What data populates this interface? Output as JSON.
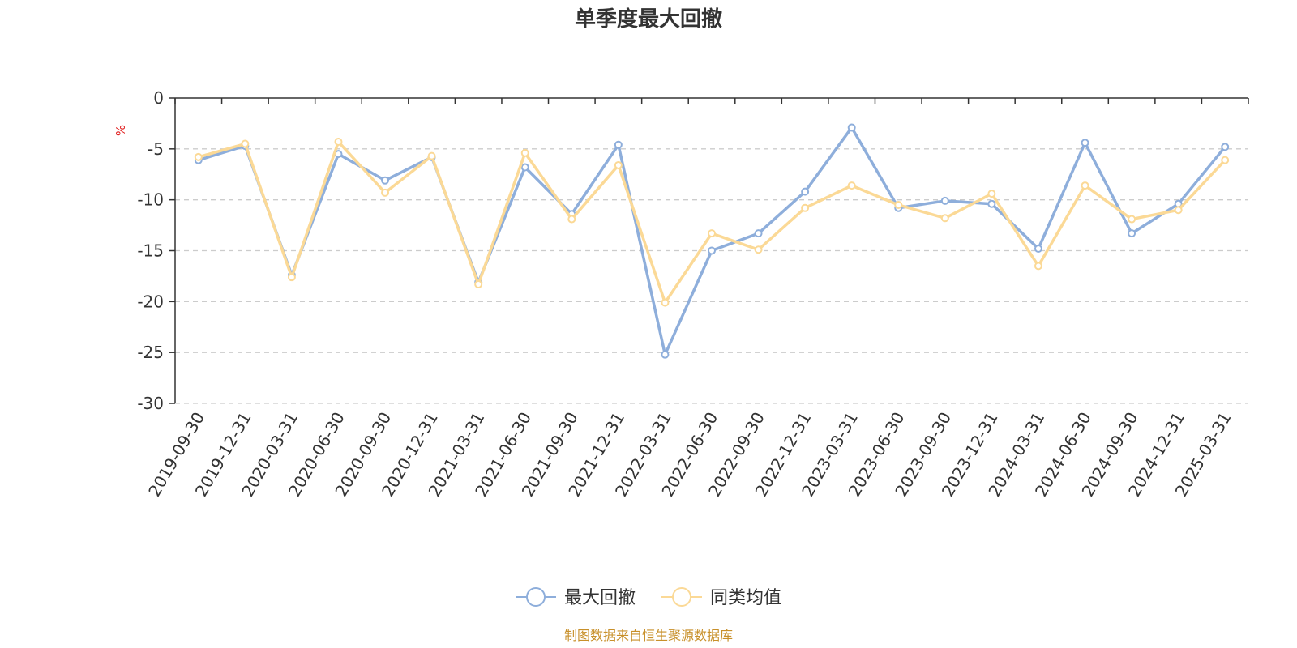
{
  "chart_data": {
    "type": "line",
    "title": "单季度最大回撤",
    "unit_label": "%",
    "ylim": [
      -30,
      0
    ],
    "yticks": [
      0,
      -5,
      -10,
      -15,
      -20,
      -25,
      -30
    ],
    "grid": true,
    "legend_position": "bottom",
    "categories": [
      "2019-09-30",
      "2019-12-31",
      "2020-03-31",
      "2020-06-30",
      "2020-09-30",
      "2020-12-31",
      "2021-03-31",
      "2021-06-30",
      "2021-09-30",
      "2021-12-31",
      "2022-03-31",
      "2022-06-30",
      "2022-09-30",
      "2022-12-31",
      "2023-03-31",
      "2023-06-30",
      "2023-09-30",
      "2023-12-31",
      "2024-03-31",
      "2024-06-30",
      "2024-09-30",
      "2024-12-31",
      "2025-03-31"
    ],
    "series": [
      {
        "name": "最大回撤",
        "color": "#8eaedb",
        "values": [
          -6.1,
          -4.7,
          -17.4,
          -5.5,
          -8.1,
          -5.8,
          -18.1,
          -6.8,
          -11.4,
          -4.6,
          -25.2,
          -15.0,
          -13.3,
          -9.2,
          -2.9,
          -10.8,
          -10.1,
          -10.4,
          -14.8,
          -4.4,
          -13.3,
          -10.4,
          -4.8
        ]
      },
      {
        "name": "同类均值",
        "color": "#fbd996",
        "values": [
          -5.8,
          -4.5,
          -17.6,
          -4.3,
          -9.3,
          -5.7,
          -18.3,
          -5.4,
          -11.9,
          -6.6,
          -20.1,
          -13.3,
          -14.9,
          -10.8,
          -8.6,
          -10.5,
          -11.8,
          -9.4,
          -16.5,
          -8.6,
          -11.9,
          -11.0,
          -6.1
        ]
      }
    ],
    "source": "制图数据来自恒生聚源数据库"
  }
}
